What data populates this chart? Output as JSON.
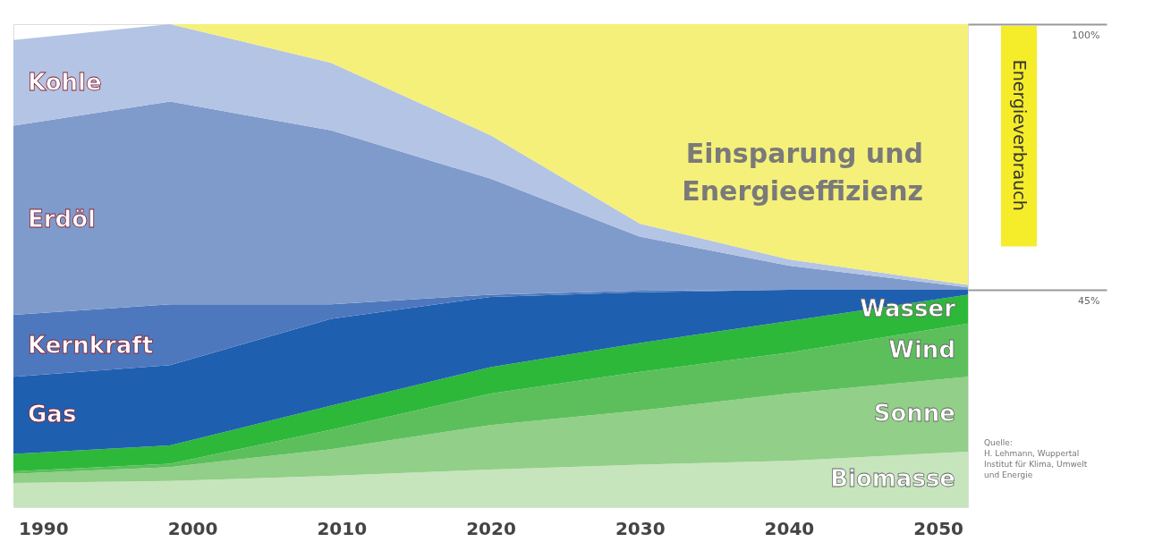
{
  "chart_data": {
    "type": "area",
    "stacked": true,
    "x": [
      1988,
      1998.5,
      2009.3,
      2020,
      2030,
      2040,
      2052
    ],
    "xlim": [
      1988,
      2052
    ],
    "xticks": [
      1990,
      2000,
      2010,
      2020,
      2030,
      2040,
      2050
    ],
    "ylim": [
      0,
      100
    ],
    "yticks": [
      {
        "value": 100,
        "label": "100%"
      },
      {
        "value": 45,
        "label": "45%"
      }
    ],
    "series": [
      {
        "name": "Biomasse",
        "color": "#c6e5bc",
        "values": [
          5,
          5.4,
          6.5,
          7.8,
          8.8,
          9.6,
          11.5
        ]
      },
      {
        "name": "Sonne",
        "color": "#92cf88",
        "values": [
          1.9,
          2.9,
          5.5,
          9.2,
          11.2,
          13.9,
          15.5
        ]
      },
      {
        "name": "Wind",
        "color": "#5cbf5c",
        "values": [
          0.5,
          0.7,
          4,
          6.5,
          8,
          8.5,
          11
        ]
      },
      {
        "name": "Wasser",
        "color": "#2db83a",
        "values": [
          3.6,
          3.8,
          5,
          5.5,
          6,
          6.5,
          6
        ]
      },
      {
        "name": "Gas",
        "color": "#1f5fb0",
        "values": [
          16,
          16.6,
          18,
          14.5,
          10.5,
          6.5,
          1
        ]
      },
      {
        "name": "Kernkraft",
        "color": "#4d78bd",
        "values": [
          12.8,
          12.6,
          3,
          0.5,
          0.3,
          0,
          0
        ]
      },
      {
        "name": "Erdöl",
        "color": "#7f9bcc",
        "values": [
          39.2,
          42,
          36,
          24,
          11.2,
          5,
          0.5
        ]
      },
      {
        "name": "Kohle",
        "color": "#b4c4e4",
        "values": [
          17.7,
          16,
          14,
          9,
          2.7,
          1.3,
          0.5
        ]
      },
      {
        "name": "Einsparung und Energieeffizienz",
        "color": "#f5f07a",
        "values": [
          0,
          0,
          8,
          23,
          41.3,
          48.7,
          54
        ]
      }
    ],
    "annotations": [
      "Energieverbrauch",
      "Quelle:\nH. Lehmann, Wuppertal\nInstitut für Klima, Umwelt\nund Energie"
    ]
  }
}
